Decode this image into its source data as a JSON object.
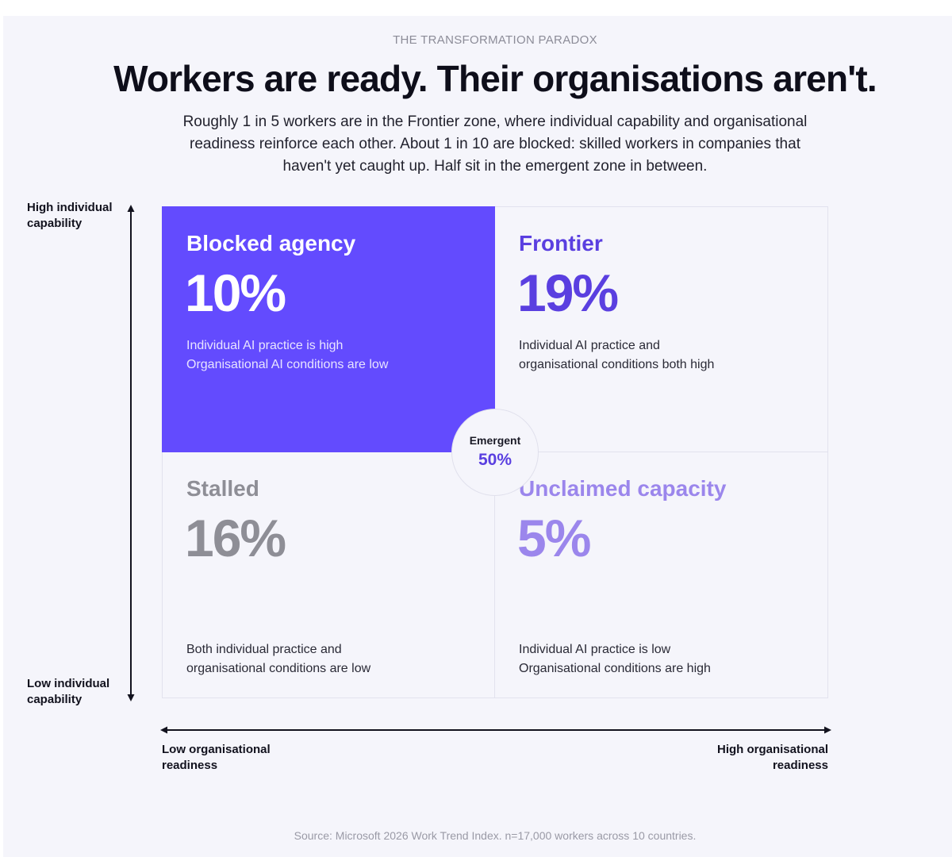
{
  "eyebrow": "THE TRANSFORMATION PARADOX",
  "headline": "Workers are ready. Their organisations aren't.",
  "intro": "Roughly 1 in 5 workers are in the Frontier zone, where individual capability and organisational readiness reinforce each other. About 1 in 10 are blocked: skilled workers in companies that haven't yet caught up. Half sit in the emergent zone in between.",
  "axes": {
    "y_high": "High individual capability",
    "y_low": "Low individual capability",
    "x_low": "Low organisational readiness",
    "x_high": "High organisational readiness"
  },
  "quadrants": {
    "top_left": {
      "title": "Blocked agency",
      "pct": "10%",
      "desc_line1": "Individual AI practice is high",
      "desc_line2": "Organisational AI conditions are low",
      "color": "#634bfe"
    },
    "top_right": {
      "title": "Frontier",
      "pct": "19%",
      "desc_line1": "Individual AI practice and",
      "desc_line2": "organisational conditions both high",
      "color": "#5a3fe0"
    },
    "bottom_left": {
      "title": "Stalled",
      "pct": "16%",
      "desc_line1": "Both individual practice and",
      "desc_line2": "organisational conditions are low",
      "color": "#8e8e96"
    },
    "bottom_right": {
      "title": "Unclaimed capacity",
      "pct": "5%",
      "desc_line1": "Individual AI practice is low",
      "desc_line2": "Organisational conditions are high",
      "color": "#9b86ec"
    }
  },
  "center": {
    "label": "Emergent",
    "pct": "50%"
  },
  "source": "Source: Microsoft 2026 Work Trend Index. n=17,000 workers across 10 countries."
}
